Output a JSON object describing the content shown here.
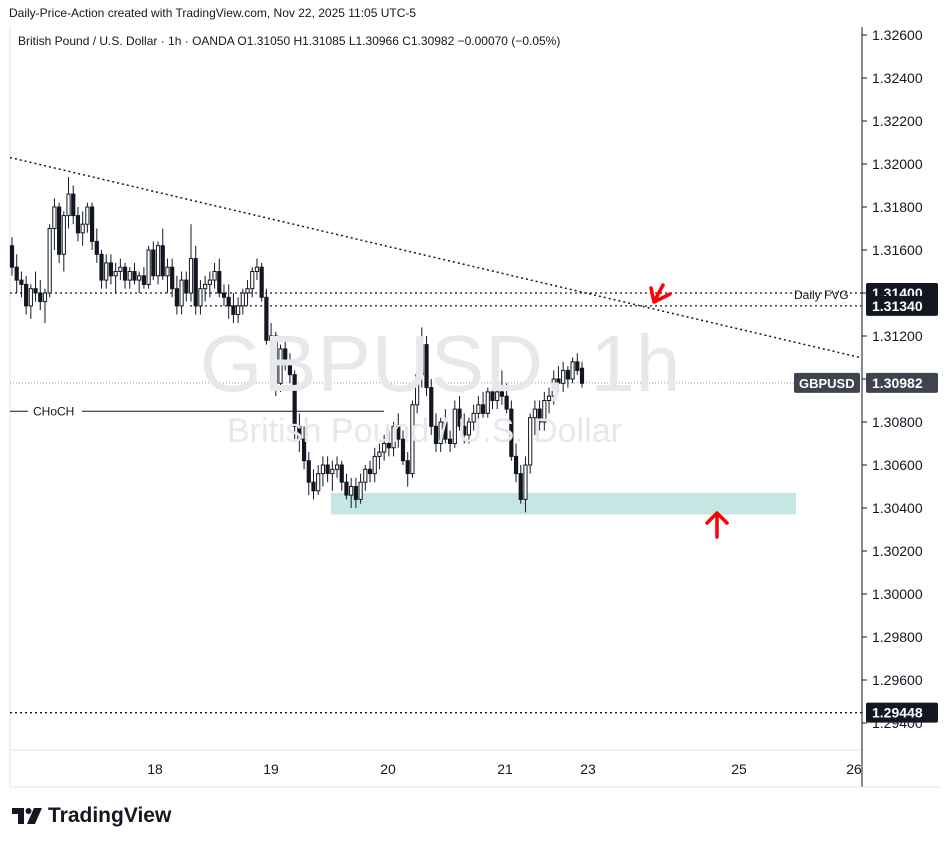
{
  "header": {
    "credit": "Daily-Price-Action created with TradingView.com, Nov 22, 2025 11:05 UTC-5",
    "legend": "British Pound / U.S. Dollar · 1h · OANDA  O1.31050  H1.31085  L1.30966  C1.30982  −0.00070 (−0.05%)"
  },
  "watermark": {
    "symbol": "GBPUSD, 1h",
    "name": "British Pound / U.S. Dollar"
  },
  "brand": {
    "name": "TradingView",
    "logo_icon": "tradingview-logo-icon"
  },
  "colors": {
    "up": "#131722",
    "down": "#131722",
    "zone": "#b2dfdb",
    "arrow": "#ff0000",
    "line": "#131722"
  },
  "chart_data": {
    "type": "candlestick",
    "title": "British Pound / U.S. Dollar · 1h · OANDA",
    "symbol": "GBPUSD",
    "ylim": [
      1.2935,
      1.3265
    ],
    "y_ticks": [
      "1.32600",
      "1.32400",
      "1.32200",
      "1.32000",
      "1.31800",
      "1.31600",
      "1.31400",
      "1.31200",
      "1.31000",
      "1.30800",
      "1.30600",
      "1.30400",
      "1.30200",
      "1.30000",
      "1.29800",
      "1.29600",
      "1.29400"
    ],
    "x_ticks": [
      "18",
      "19",
      "20",
      "21",
      "23",
      "25",
      "26"
    ],
    "last_price": {
      "label": "GBPUSD",
      "value": "1.30982",
      "price": 1.30982
    },
    "price_labels": [
      {
        "value": "1.31400",
        "price": 1.314
      },
      {
        "value": "1.31340",
        "price": 1.3134
      },
      {
        "value": "1.29448",
        "price": 1.29448
      }
    ],
    "annotations": {
      "fvg_label": "Daily FVG",
      "choch_label": "CHoCH",
      "choch_price": 1.3085,
      "demand_zone": {
        "low": 1.3037,
        "high": 1.3047
      },
      "fvg_top": 1.314,
      "fvg_bottom": 1.3134,
      "low_target": 1.29448,
      "trendline": [
        {
          "x": 0,
          "price": 1.3203
        },
        {
          "x": 1,
          "price": 1.311
        }
      ]
    },
    "candles": [
      [
        1.3162,
        1.3166,
        1.3148,
        1.3152
      ],
      [
        1.3152,
        1.3158,
        1.314,
        1.3146
      ],
      [
        1.3146,
        1.315,
        1.3138,
        1.3144
      ],
      [
        1.3144,
        1.3148,
        1.313,
        1.3134
      ],
      [
        1.3134,
        1.3144,
        1.3128,
        1.3142
      ],
      [
        1.3142,
        1.315,
        1.3136,
        1.314
      ],
      [
        1.314,
        1.3146,
        1.3132,
        1.3136
      ],
      [
        1.3136,
        1.3142,
        1.3126,
        1.314
      ],
      [
        1.314,
        1.3172,
        1.3138,
        1.317
      ],
      [
        1.317,
        1.3184,
        1.316,
        1.318
      ],
      [
        1.318,
        1.3182,
        1.3154,
        1.3158
      ],
      [
        1.3158,
        1.3178,
        1.315,
        1.3176
      ],
      [
        1.3176,
        1.3194,
        1.317,
        1.3186
      ],
      [
        1.3186,
        1.319,
        1.3172,
        1.3176
      ],
      [
        1.3176,
        1.318,
        1.3164,
        1.3168
      ],
      [
        1.3168,
        1.3178,
        1.3162,
        1.3172
      ],
      [
        1.3172,
        1.3182,
        1.3168,
        1.318
      ],
      [
        1.318,
        1.3182,
        1.316,
        1.3164
      ],
      [
        1.3164,
        1.317,
        1.3154,
        1.3158
      ],
      [
        1.3158,
        1.316,
        1.3142,
        1.3146
      ],
      [
        1.3146,
        1.3158,
        1.3142,
        1.3154
      ],
      [
        1.3154,
        1.3158,
        1.3144,
        1.3148
      ],
      [
        1.3148,
        1.3154,
        1.314,
        1.315
      ],
      [
        1.315,
        1.3156,
        1.3146,
        1.3152
      ],
      [
        1.3152,
        1.3154,
        1.3142,
        1.3146
      ],
      [
        1.3146,
        1.3152,
        1.3142,
        1.315
      ],
      [
        1.315,
        1.3154,
        1.3144,
        1.3146
      ],
      [
        1.3146,
        1.315,
        1.314,
        1.3148
      ],
      [
        1.3148,
        1.3152,
        1.3142,
        1.3144
      ],
      [
        1.3144,
        1.3162,
        1.3142,
        1.316
      ],
      [
        1.316,
        1.3164,
        1.3146,
        1.3148
      ],
      [
        1.3148,
        1.3164,
        1.3144,
        1.3162
      ],
      [
        1.3162,
        1.317,
        1.3146,
        1.3148
      ],
      [
        1.3148,
        1.3156,
        1.314,
        1.3152
      ],
      [
        1.3152,
        1.3156,
        1.3138,
        1.3142
      ],
      [
        1.3142,
        1.3148,
        1.313,
        1.3134
      ],
      [
        1.3134,
        1.315,
        1.313,
        1.3146
      ],
      [
        1.3146,
        1.315,
        1.3136,
        1.314
      ],
      [
        1.314,
        1.3172,
        1.3136,
        1.3156
      ],
      [
        1.3156,
        1.3162,
        1.313,
        1.3134
      ],
      [
        1.3134,
        1.3146,
        1.313,
        1.3142
      ],
      [
        1.3142,
        1.3148,
        1.3136,
        1.3144
      ],
      [
        1.3144,
        1.315,
        1.3138,
        1.3146
      ],
      [
        1.3146,
        1.3154,
        1.3142,
        1.315
      ],
      [
        1.315,
        1.3156,
        1.3138,
        1.314
      ],
      [
        1.314,
        1.3144,
        1.3134,
        1.3138
      ],
      [
        1.3138,
        1.3144,
        1.3128,
        1.3134
      ],
      [
        1.3134,
        1.314,
        1.3126,
        1.313
      ],
      [
        1.313,
        1.3138,
        1.3126,
        1.3134
      ],
      [
        1.3134,
        1.3142,
        1.313,
        1.314
      ],
      [
        1.314,
        1.3146,
        1.3134,
        1.3142
      ],
      [
        1.3142,
        1.3152,
        1.3138,
        1.315
      ],
      [
        1.315,
        1.3156,
        1.3146,
        1.3152
      ],
      [
        1.3152,
        1.3154,
        1.3136,
        1.3138
      ],
      [
        1.3138,
        1.3142,
        1.3116,
        1.3118
      ],
      [
        1.3118,
        1.3126,
        1.3108,
        1.312
      ],
      [
        1.312,
        1.3122,
        1.3092,
        1.3098
      ],
      [
        1.3098,
        1.3116,
        1.3094,
        1.3114
      ],
      [
        1.3114,
        1.3118,
        1.3104,
        1.3108
      ],
      [
        1.3108,
        1.3112,
        1.3098,
        1.3102
      ],
      [
        1.3102,
        1.3104,
        1.3072,
        1.3078
      ],
      [
        1.3078,
        1.3084,
        1.3066,
        1.3072
      ],
      [
        1.3072,
        1.3078,
        1.3058,
        1.3062
      ],
      [
        1.3062,
        1.3066,
        1.3046,
        1.3052
      ],
      [
        1.3052,
        1.3058,
        1.3044,
        1.3048
      ],
      [
        1.3048,
        1.306,
        1.3046,
        1.3056
      ],
      [
        1.3056,
        1.3064,
        1.305,
        1.306
      ],
      [
        1.306,
        1.3064,
        1.3052,
        1.3056
      ],
      [
        1.3056,
        1.3062,
        1.3048,
        1.3058
      ],
      [
        1.3058,
        1.3064,
        1.3054,
        1.306
      ],
      [
        1.306,
        1.3062,
        1.3048,
        1.3052
      ],
      [
        1.3052,
        1.3056,
        1.3044,
        1.3046
      ],
      [
        1.3046,
        1.3054,
        1.304,
        1.305
      ],
      [
        1.305,
        1.3054,
        1.304,
        1.3044
      ],
      [
        1.3044,
        1.3056,
        1.3042,
        1.3052
      ],
      [
        1.3052,
        1.306,
        1.3048,
        1.3058
      ],
      [
        1.3058,
        1.3062,
        1.3052,
        1.3056
      ],
      [
        1.3056,
        1.3068,
        1.3052,
        1.3064
      ],
      [
        1.3064,
        1.307,
        1.3058,
        1.3066
      ],
      [
        1.3066,
        1.3074,
        1.3062,
        1.307
      ],
      [
        1.307,
        1.3076,
        1.3064,
        1.3068
      ],
      [
        1.3068,
        1.308,
        1.3064,
        1.3078
      ],
      [
        1.3078,
        1.3084,
        1.3068,
        1.3072
      ],
      [
        1.3072,
        1.3076,
        1.306,
        1.3062
      ],
      [
        1.3062,
        1.3066,
        1.305,
        1.3056
      ],
      [
        1.3056,
        1.309,
        1.3054,
        1.3088
      ],
      [
        1.3088,
        1.3106,
        1.3084,
        1.3102
      ],
      [
        1.3102,
        1.3124,
        1.3096,
        1.3116
      ],
      [
        1.3116,
        1.312,
        1.3092,
        1.3096
      ],
      [
        1.3096,
        1.31,
        1.3074,
        1.3078
      ],
      [
        1.3078,
        1.3084,
        1.3066,
        1.307
      ],
      [
        1.307,
        1.3082,
        1.3066,
        1.308
      ],
      [
        1.308,
        1.3086,
        1.307,
        1.3072
      ],
      [
        1.3072,
        1.3076,
        1.3066,
        1.307
      ],
      [
        1.307,
        1.309,
        1.3068,
        1.3086
      ],
      [
        1.3086,
        1.3092,
        1.3076,
        1.3078
      ],
      [
        1.3078,
        1.3084,
        1.307,
        1.3074
      ],
      [
        1.3074,
        1.3082,
        1.307,
        1.308
      ],
      [
        1.308,
        1.3088,
        1.3076,
        1.3084
      ],
      [
        1.3084,
        1.3092,
        1.308,
        1.3088
      ],
      [
        1.3088,
        1.3094,
        1.3082,
        1.3084
      ],
      [
        1.3084,
        1.3096,
        1.3082,
        1.3094
      ],
      [
        1.3094,
        1.31,
        1.3086,
        1.309
      ],
      [
        1.309,
        1.3098,
        1.3086,
        1.3094
      ],
      [
        1.3094,
        1.3104,
        1.3088,
        1.3092
      ],
      [
        1.3092,
        1.3098,
        1.3084,
        1.3086
      ],
      [
        1.3086,
        1.309,
        1.3062,
        1.3064
      ],
      [
        1.3064,
        1.307,
        1.3052,
        1.3056
      ],
      [
        1.3056,
        1.306,
        1.3042,
        1.3044
      ],
      [
        1.3044,
        1.3064,
        1.3038,
        1.306
      ],
      [
        1.306,
        1.3084,
        1.3056,
        1.3082
      ],
      [
        1.3082,
        1.309,
        1.3074,
        1.3086
      ],
      [
        1.3086,
        1.309,
        1.3076,
        1.308
      ],
      [
        1.308,
        1.3094,
        1.3076,
        1.309
      ],
      [
        1.309,
        1.3096,
        1.3084,
        1.3092
      ],
      [
        1.3092,
        1.3104,
        1.3088,
        1.31
      ],
      [
        1.31,
        1.3106,
        1.3094,
        1.3098
      ],
      [
        1.3098,
        1.3108,
        1.3094,
        1.3104
      ],
      [
        1.3104,
        1.3106,
        1.3096,
        1.31
      ],
      [
        1.31,
        1.311,
        1.3098,
        1.3108
      ],
      [
        1.3108,
        1.3112,
        1.3102,
        1.3104
      ],
      [
        1.3105,
        1.3108,
        1.3096,
        1.3098
      ]
    ]
  }
}
